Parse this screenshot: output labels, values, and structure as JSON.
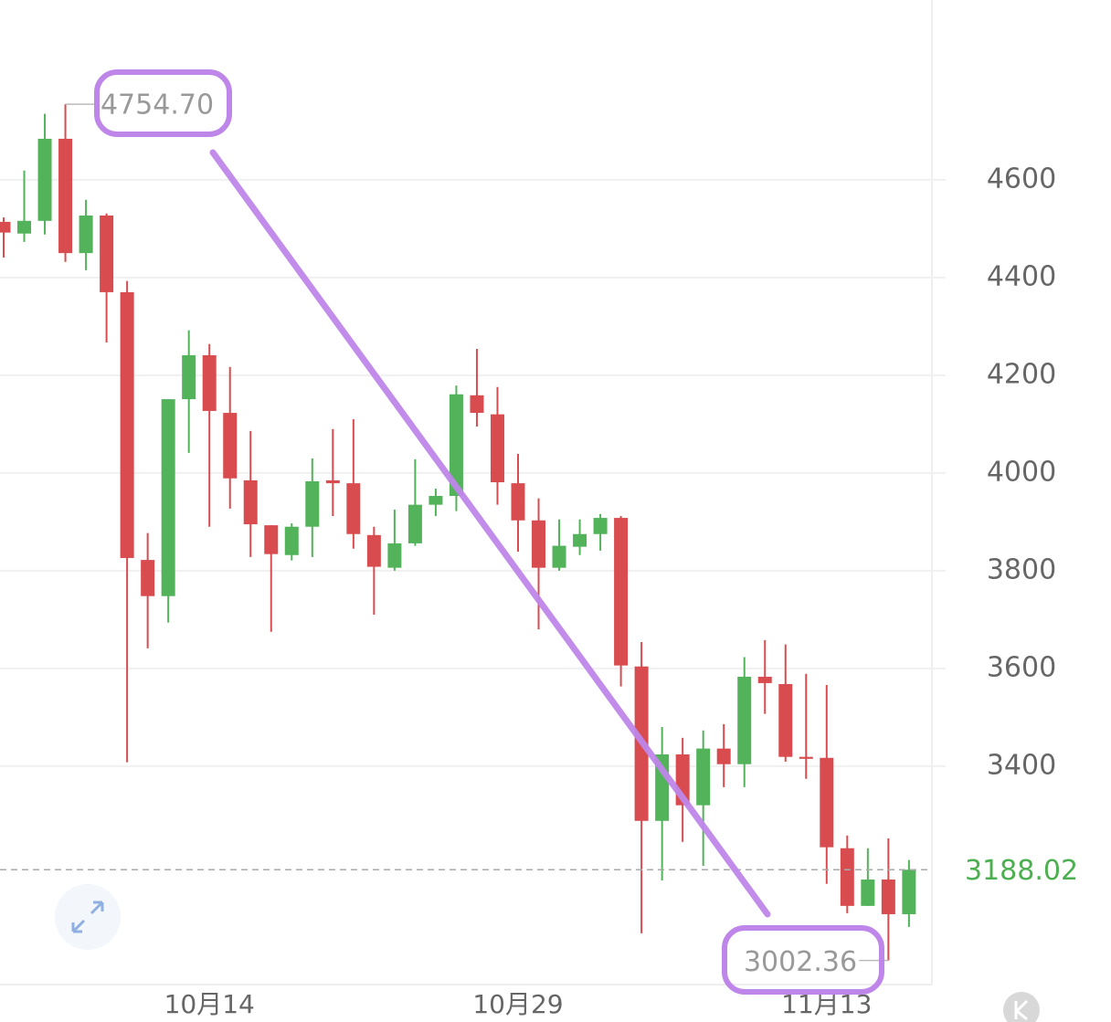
{
  "chart_data": {
    "type": "candlestick",
    "categories": [
      null,
      null,
      null,
      null,
      null,
      null,
      null,
      null,
      null,
      null,
      "10月14",
      null,
      null,
      null,
      null,
      null,
      null,
      null,
      null,
      null,
      null,
      null,
      null,
      null,
      null,
      "10月29",
      null,
      null,
      null,
      null,
      null,
      null,
      null,
      null,
      null,
      null,
      null,
      null,
      null,
      null,
      "11月13",
      null,
      null,
      null,
      null
    ],
    "open": [
      4514,
      4490,
      4516,
      4684,
      4450,
      4527,
      4370,
      3822,
      3748,
      4151,
      4241,
      4123,
      3985,
      3893,
      3832,
      3890,
      3985,
      3979,
      3873,
      3806,
      3856,
      3935,
      3953,
      4159,
      4120,
      3979,
      3903,
      3806,
      3849,
      3875,
      3908,
      3604,
      3288,
      3424,
      3320,
      3436,
      3404,
      3583,
      3568,
      3419,
      3417,
      3232,
      3114,
      3168,
      3097
    ],
    "high": [
      4523,
      4619,
      4735,
      4754.7,
      4559,
      4531,
      4393,
      3877,
      4151,
      4292,
      4264,
      4217,
      4086,
      3893,
      3897,
      4030,
      4090,
      4110,
      3890,
      3925,
      4028,
      3968,
      4179,
      4254,
      4176,
      4039,
      3948,
      3905,
      3905,
      3916,
      3912,
      3654,
      3480,
      3458,
      3473,
      3486,
      3623,
      3658,
      3649,
      3589,
      3566,
      3258,
      3232,
      3252,
      3208
    ],
    "low": [
      4441,
      4473,
      4488,
      4432,
      4415,
      4267,
      3408,
      3641,
      3694,
      4041,
      3890,
      3927,
      3828,
      3675,
      3821,
      3828,
      3912,
      3845,
      3710,
      3800,
      3851,
      3912,
      3922,
      4095,
      3935,
      3839,
      3680,
      3800,
      3832,
      3841,
      3563,
      3058,
      3166,
      3245,
      3196,
      3357,
      3357,
      3507,
      3409,
      3374,
      3159,
      3099,
      3114,
      3002.36,
      3071
    ],
    "close": [
      4492,
      4516,
      4684,
      4450,
      4527,
      4370,
      3826,
      3748,
      4151,
      4241,
      4127,
      3989,
      3895,
      3834,
      3890,
      3983,
      3979,
      3875,
      3808,
      3856,
      3935,
      3953,
      4161,
      4123,
      3981,
      3903,
      3806,
      3851,
      3875,
      3908,
      3606,
      3288,
      3424,
      3320,
      3436,
      3404,
      3583,
      3570,
      3419,
      3415,
      3234,
      3114,
      3168,
      3097,
      3188.02
    ],
    "up_color": "#52b35a",
    "down_color": "#d84c4f",
    "ylim": [
      2953,
      4968
    ],
    "yticks": [
      3400,
      3600,
      3800,
      4000,
      4200,
      4400,
      4600
    ],
    "grid": true,
    "high_label": "4754.70",
    "low_label": "3002.36",
    "last_label": "3188.02"
  }
}
